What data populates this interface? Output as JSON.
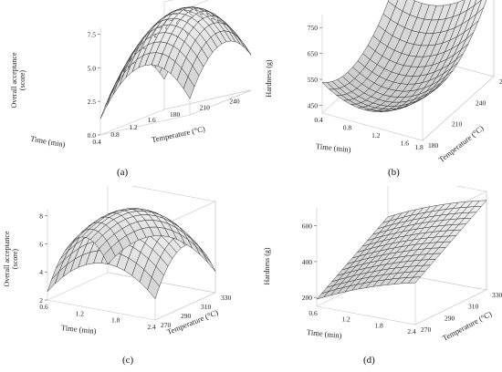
{
  "chart_data": [
    {
      "type": "surface",
      "panel_label": "(a)",
      "xlabel": "Time (min)",
      "ylabel": "Temperature (°C)",
      "zlabel": "Overall acceptance (score)",
      "x_ticks": [
        "0.4",
        "0.8",
        "1.2",
        "1.6"
      ],
      "y_ticks": [
        "180",
        "210",
        "240",
        "270"
      ],
      "z_ticks": [
        "0.0",
        "2.5",
        "5.0",
        "7.5"
      ],
      "xlim": [
        0.4,
        1.8
      ],
      "ylim": [
        180,
        270
      ],
      "zlim": [
        0,
        8
      ],
      "shape": "dome",
      "z_peak": 7.6,
      "z_min": 1.2
    },
    {
      "type": "surface",
      "panel_label": "(b)",
      "xlabel": "Time (min)",
      "ylabel": "Temperature (°C)",
      "zlabel": "Hardness (g)",
      "x_ticks": [
        "0.4",
        "0.8",
        "1.2",
        "1.6",
        "1.8"
      ],
      "y_ticks": [
        "180",
        "210",
        "240",
        "270"
      ],
      "z_ticks": [
        "450",
        "550",
        "650",
        "750"
      ],
      "xlim": [
        0.4,
        1.8
      ],
      "ylim": [
        180,
        270
      ],
      "zlim": [
        420,
        800
      ],
      "shape": "bowl",
      "z_peak": 800,
      "z_min": 440
    },
    {
      "type": "surface",
      "panel_label": "(c)",
      "xlabel": "Time (min)",
      "ylabel": "Temperature (°C)",
      "zlabel": "Overall acceptance (score)",
      "x_ticks": [
        "0.6",
        "1.2",
        "1.8",
        "2.4"
      ],
      "y_ticks": [
        "270",
        "290",
        "310",
        "330"
      ],
      "z_ticks": [
        "2",
        "4",
        "6",
        "8"
      ],
      "xlim": [
        0.6,
        2.4
      ],
      "ylim": [
        270,
        330
      ],
      "zlim": [
        2,
        8.5
      ],
      "shape": "dome",
      "z_peak": 8.2,
      "z_min": 2.6
    },
    {
      "type": "surface",
      "panel_label": "(d)",
      "xlabel": "Time (min)",
      "ylabel": "Temperature (°C)",
      "zlabel": "Hardness (g)",
      "x_ticks": [
        "0.6",
        "1.2",
        "1.8",
        "2.4"
      ],
      "y_ticks": [
        "270",
        "290",
        "310",
        "330"
      ],
      "z_ticks": [
        "200",
        "400",
        "600"
      ],
      "xlim": [
        0.6,
        2.4
      ],
      "ylim": [
        270,
        330
      ],
      "zlim": [
        150,
        700
      ],
      "shape": "ramp",
      "z_peak": 650,
      "z_min": 190
    }
  ]
}
